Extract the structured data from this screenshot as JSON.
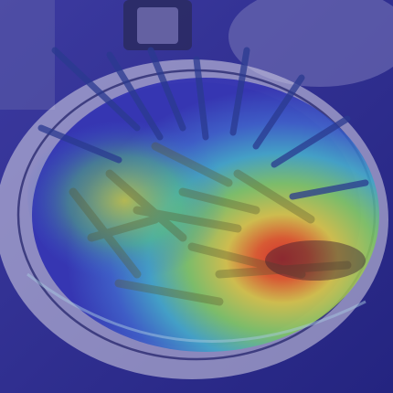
{
  "image": {
    "subject": "fries-and-asparagus-on-plate",
    "overlay": "attention-heatmap",
    "colormap": "jet",
    "colors": {
      "cold": "#2a2ab8",
      "cool": "#3a6ad8",
      "mid": "#4ec8c8",
      "warm": "#d8d040",
      "hot": "#e02a18",
      "plate": "#d8d6e8",
      "table": "#2c2e80"
    },
    "peak_region": "lower-right-of-plate"
  }
}
